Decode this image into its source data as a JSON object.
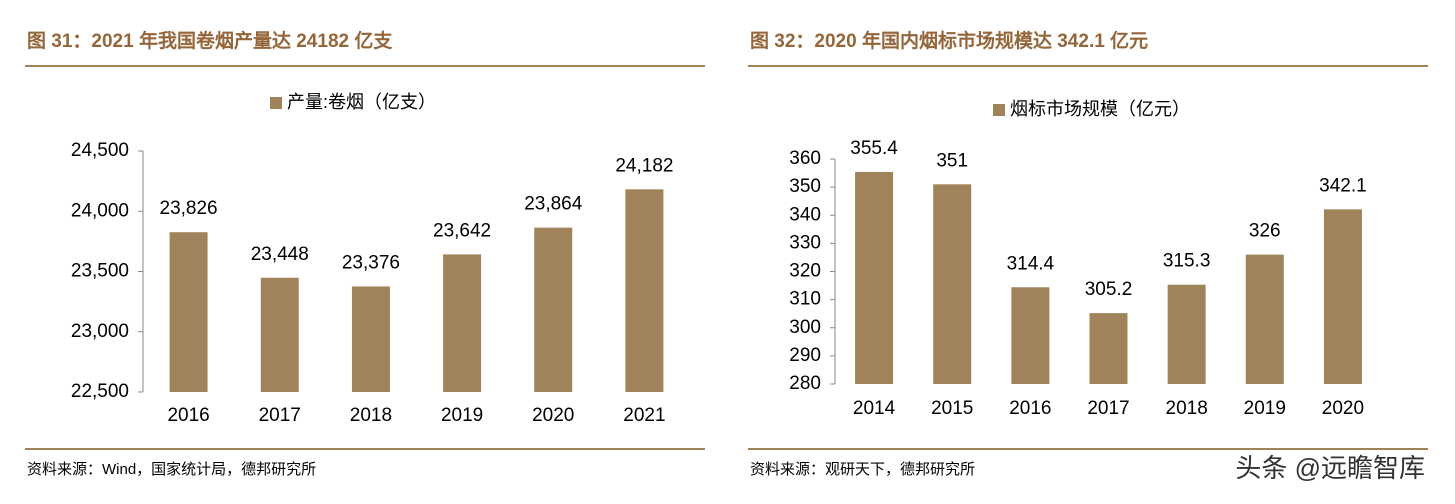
{
  "chart_data": [
    {
      "type": "bar",
      "title": "图 31：2021 年我国卷烟产量达 24182 亿支",
      "categories": [
        "2016",
        "2017",
        "2018",
        "2019",
        "2020",
        "2021"
      ],
      "series": [
        {
          "name": "产量:卷烟（亿支）",
          "color": "#a0835a",
          "values": [
            23826,
            23448,
            23376,
            23642,
            23864,
            24182
          ],
          "value_labels": [
            "23,826",
            "23,448",
            "23,376",
            "23,642",
            "23,864",
            "24,182"
          ]
        }
      ],
      "ylim": [
        22500,
        24500
      ],
      "yticks": [
        {
          "value": 22500,
          "label": "22,500"
        },
        {
          "value": 23000,
          "label": "23,000"
        },
        {
          "value": 23500,
          "label": "23,500"
        },
        {
          "value": 24000,
          "label": "24,000"
        },
        {
          "value": 24500,
          "label": "24,500"
        }
      ],
      "grid": false,
      "legend": "top",
      "source": "资料来源：Wind，国家统计局，德邦研究所"
    },
    {
      "type": "bar",
      "title": "图 32：2020 年国内烟标市场规模达 342.1 亿元",
      "categories": [
        "2014",
        "2015",
        "2016",
        "2017",
        "2018",
        "2019",
        "2020"
      ],
      "series": [
        {
          "name": "烟标市场规模（亿元）",
          "color": "#a0835a",
          "values": [
            355.4,
            351,
            314.4,
            305.2,
            315.3,
            326,
            342.1
          ]
        }
      ],
      "ylim": [
        280,
        360
      ],
      "yticks": [
        280,
        290,
        300,
        310,
        320,
        330,
        340,
        350,
        360
      ],
      "grid": false,
      "legend": "top",
      "source": "资料来源：观研天下，德邦研究所"
    }
  ],
  "watermark": "头条 @远瞻智库"
}
